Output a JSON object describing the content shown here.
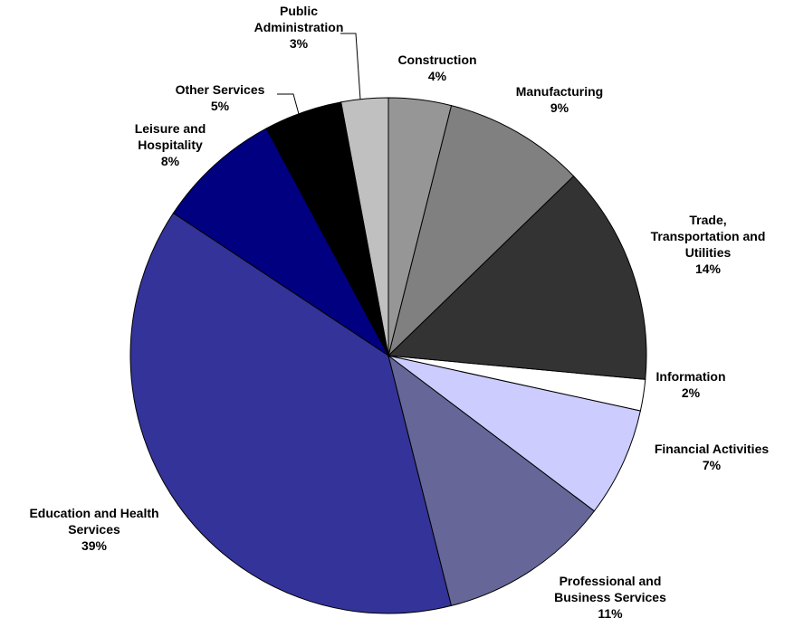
{
  "chart_data": {
    "type": "pie",
    "categories": [
      "Construction",
      "Manufacturing",
      "Trade, Transportation and Utilities",
      "Information",
      "Financial Activities",
      "Professional and Business Services",
      "Education and Health Services",
      "Leisure and Hospitality",
      "Other Services",
      "Public Administration"
    ],
    "values": [
      4,
      9,
      14,
      2,
      7,
      11,
      39,
      8,
      5,
      3
    ],
    "value_labels": [
      "4%",
      "9%",
      "14%",
      "2%",
      "7%",
      "11%",
      "39%",
      "8%",
      "5%",
      "3%"
    ],
    "colors": [
      "#969696",
      "#808080",
      "#333333",
      "#ffffff",
      "#ccccff",
      "#666699",
      "#333399",
      "#000080",
      "#000000",
      "#c0c0c0"
    ]
  }
}
